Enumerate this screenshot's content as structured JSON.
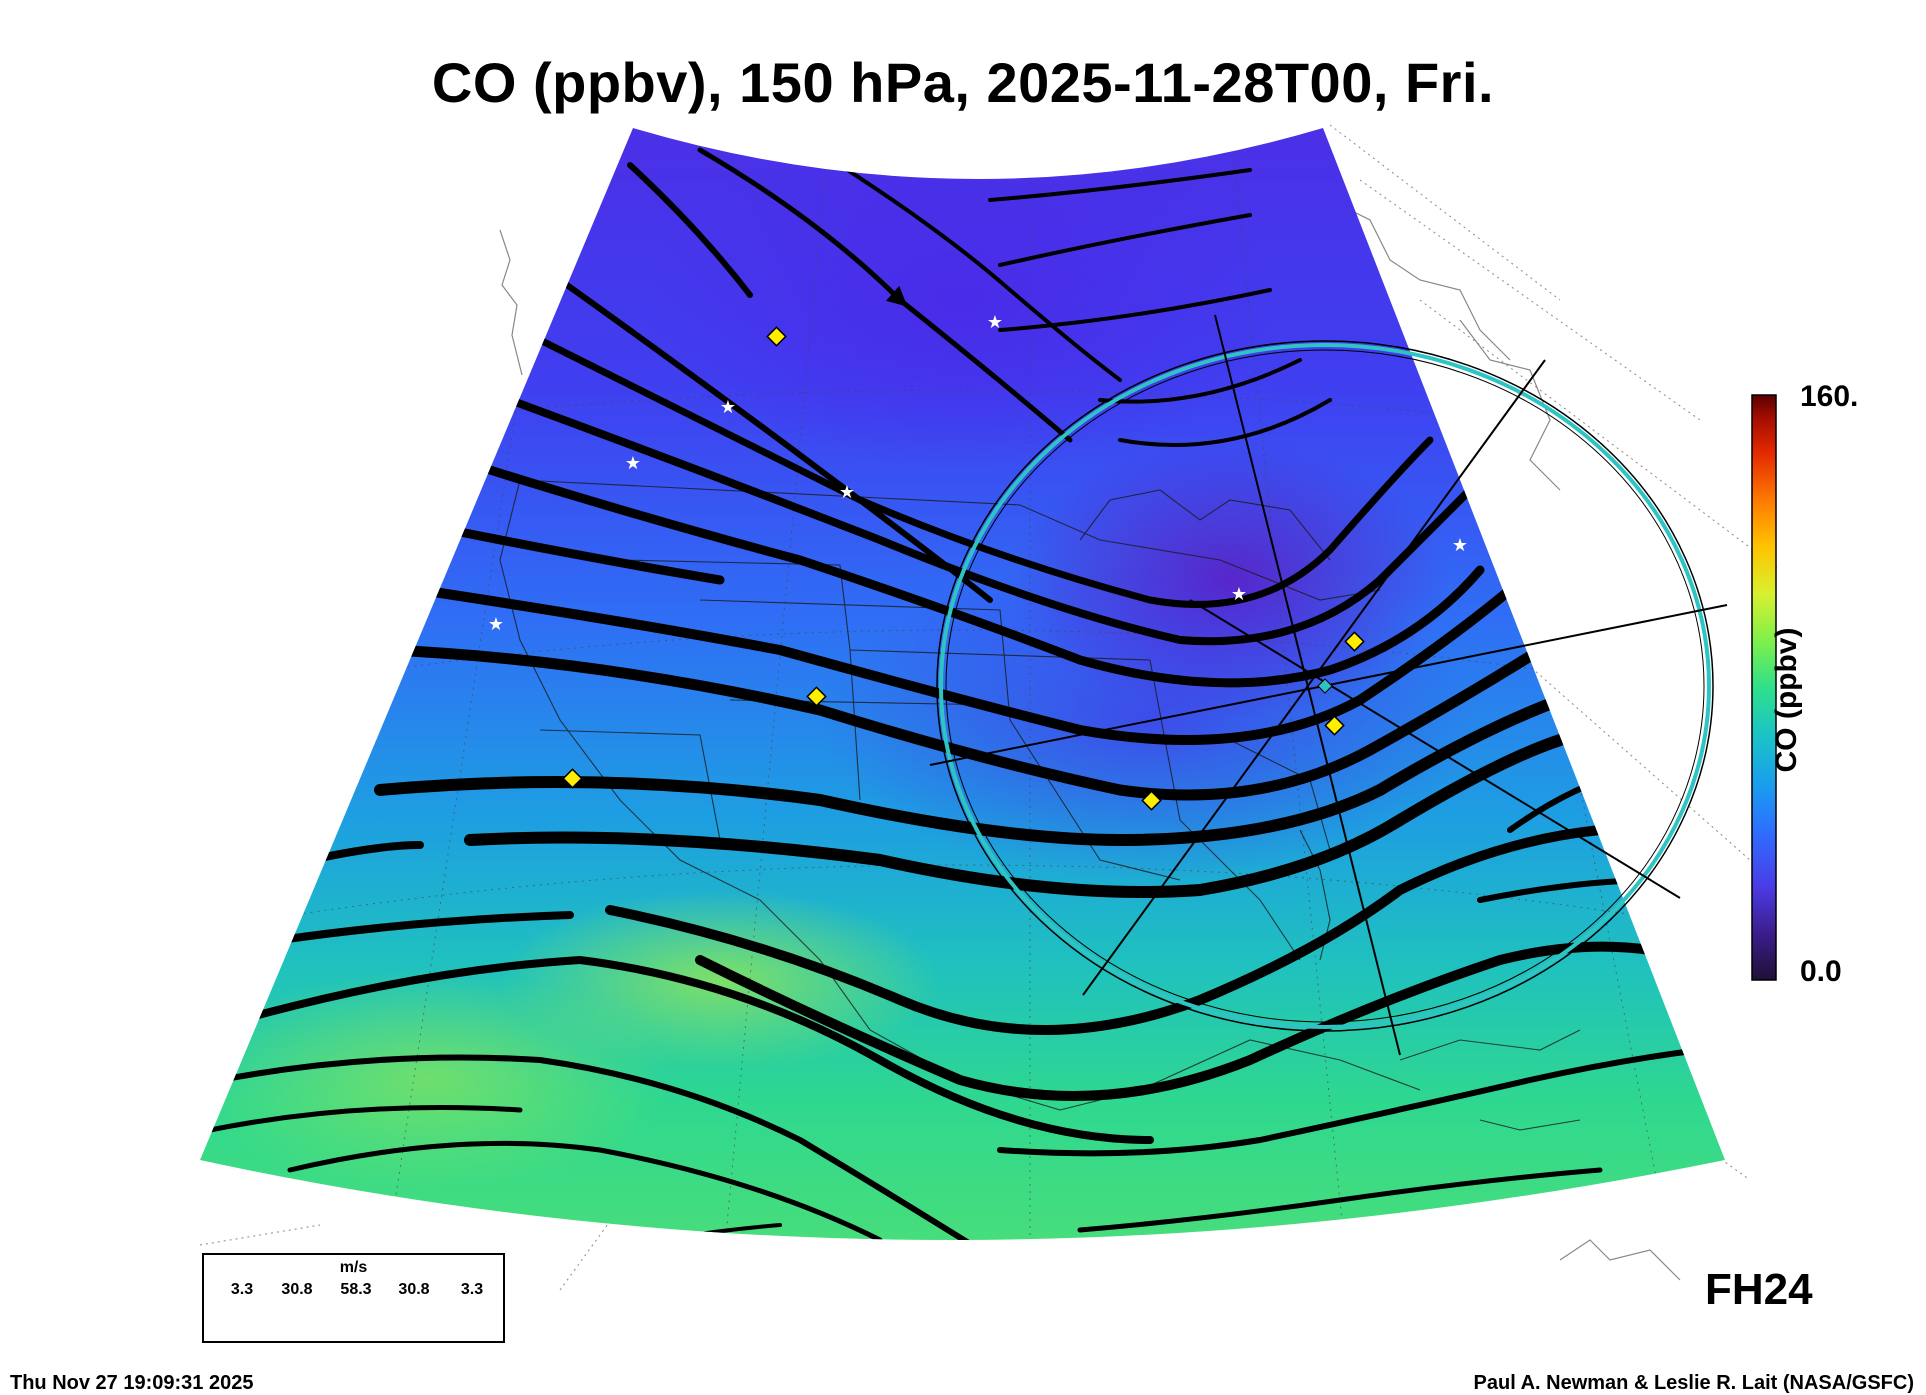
{
  "title": "CO (ppbv), 150 hPa, 2025-11-28T00, Fri.",
  "colorbar": {
    "max_label": "160.",
    "min_label": "0.0",
    "title": "CO (ppbv)",
    "stops": [
      "#1e1036",
      "#3d1d8c",
      "#4a3ce6",
      "#2f6cff",
      "#1a9cf0",
      "#1bc4c6",
      "#2fe08a",
      "#7ff04a",
      "#d8f030",
      "#ffc400",
      "#ff7a00",
      "#e42a00",
      "#a60d00",
      "#5a0000"
    ]
  },
  "wind_legend": {
    "unit": "m/s",
    "values": [
      "3.3",
      "30.8",
      "58.3",
      "30.8",
      "3.3"
    ]
  },
  "forecast_hour": "FH24",
  "timestamp": "Thu Nov 27 19:09:31 2025",
  "credit": "Paul A. Newman & Leslie R. Lait (NASA/GSFC)",
  "colors": {
    "field_low": "#4a2fe0",
    "field_mid": "#1f8fe6",
    "field_high": "#4ee07a",
    "streamline": "#000000",
    "flight_ring": "#2ec4c4",
    "station_marker": "#ffee00"
  }
}
